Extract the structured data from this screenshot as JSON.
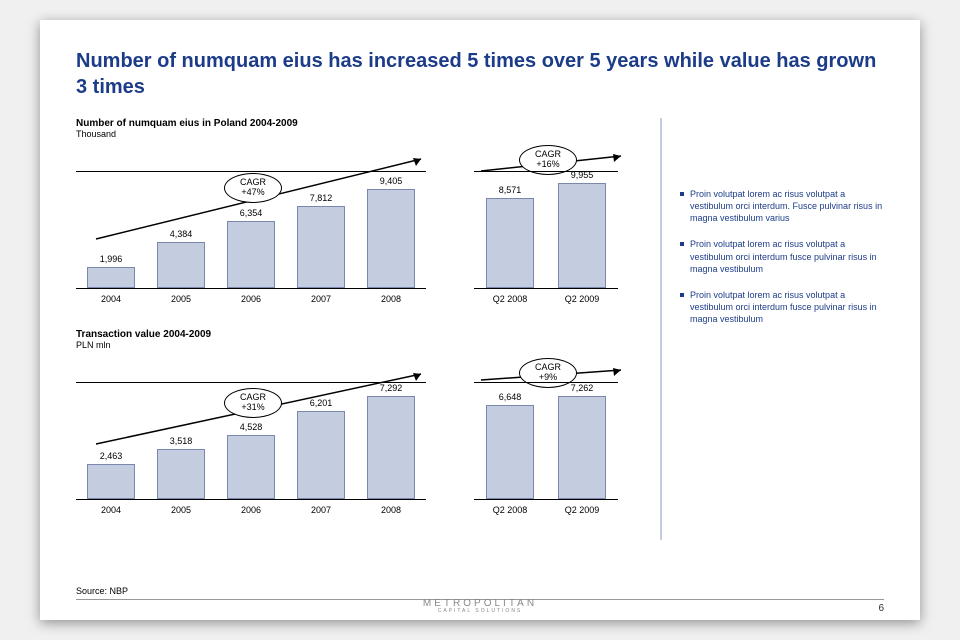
{
  "title": "Number of numquam eius has increased 5 times over 5 years while value has grown 3 times",
  "title_color": "#1c3c89",
  "title_fontsize": 20,
  "background": "#ffffff",
  "bar_fill": "#c4cde0",
  "bar_border": "#7a88ad",
  "axis_color": "#000000",
  "bullet_color": "#1c3c89",
  "chart1": {
    "title": "Number of numquam eius in Poland 2004-2009",
    "subtitle": "Thousand",
    "group_a": {
      "categories": [
        "2004",
        "2005",
        "2006",
        "2007",
        "2008"
      ],
      "values": [
        1996,
        4384,
        6354,
        7812,
        9405
      ],
      "value_labels": [
        "1,996",
        "4,384",
        "6,354",
        "7,812",
        "9,405"
      ],
      "cagr_label": "CAGR",
      "cagr_value": "+47%"
    },
    "group_b": {
      "categories": [
        "Q2 2008",
        "Q2 2009"
      ],
      "values": [
        8571,
        9955
      ],
      "value_labels": [
        "8,571",
        "9,955"
      ],
      "cagr_label": "CAGR",
      "cagr_value": "+16%"
    },
    "ymax": 11000,
    "bar_area_height": 116
  },
  "chart2": {
    "title": "Transaction value 2004-2009",
    "subtitle": "PLN mln",
    "group_a": {
      "categories": [
        "2004",
        "2005",
        "2006",
        "2007",
        "2008"
      ],
      "values": [
        2463,
        3518,
        4528,
        6201,
        7292
      ],
      "value_labels": [
        "2,463",
        "3,518",
        "4,528",
        "6,201",
        "7,292"
      ],
      "cagr_label": "CAGR",
      "cagr_value": "+31%"
    },
    "group_b": {
      "categories": [
        "Q2 2008",
        "Q2 2009"
      ],
      "values": [
        6648,
        7262
      ],
      "value_labels": [
        "6,648",
        "7,262"
      ],
      "cagr_label": "CAGR",
      "cagr_value": "+9%"
    },
    "ymax": 8200,
    "bar_area_height": 116
  },
  "bullets": [
    "Proin volutpat lorem ac risus volutpat a vestibulum orci interdum. Fusce pulvinar risus in magna vestibulum varius",
    "Proin volutpat lorem ac risus volutpat a vestibulum orci interdum fusce pulvinar risus in magna vestibulum",
    "Proin volutpat lorem ac risus volutpat a vestibulum orci interdum fusce pulvinar risus in magna vestibulum"
  ],
  "source": "Source: NBP",
  "logo": {
    "line1": "METROPOLITAN",
    "line2": "CAPITAL SOLUTIONS"
  },
  "page_number": "6"
}
